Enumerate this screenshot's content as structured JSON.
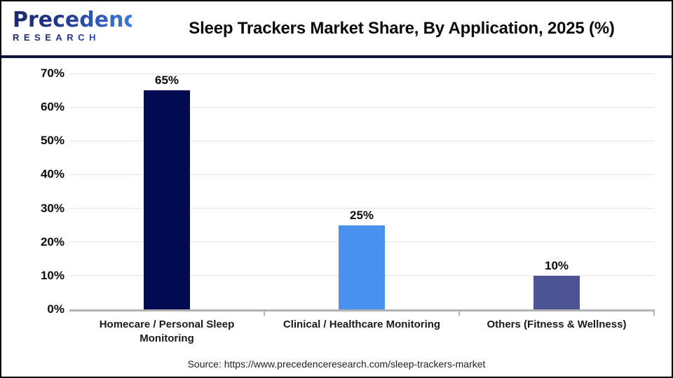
{
  "header": {
    "logo_line1": "Precedence",
    "logo_line2": "RESEARCH",
    "title": "Sleep Trackers Market Share, By Application, 2025 (%)"
  },
  "chart_data": {
    "type": "bar",
    "title": "Sleep Trackers Market Share, By Application, 2025 (%)",
    "categories": [
      "Homecare / Personal Sleep Monitoring",
      "Clinical / Healthcare Monitoring",
      "Others (Fitness & Wellness)"
    ],
    "values": [
      65,
      25,
      10
    ],
    "value_labels": [
      "65%",
      "25%",
      "10%"
    ],
    "bar_colors": [
      "#020a52",
      "#4a90ee",
      "#4d5494"
    ],
    "xlabel": "",
    "ylabel": "",
    "ylim": [
      0,
      70
    ],
    "ytick_values": [
      70,
      60,
      50,
      40,
      30,
      20,
      10,
      0
    ],
    "ytick_labels": [
      "70%",
      "60%",
      "50%",
      "40%",
      "30%",
      "20%",
      "10%",
      "0%"
    ],
    "grid": "horizontal",
    "legend": "none"
  },
  "footer": {
    "source": "Source: https://www.precedenceresearch.com/sleep-trackers-market"
  },
  "colors": {
    "divider_navy": "#0e1440",
    "axis_gray": "#b3b3b3",
    "gridline_gray": "#e7e7e7",
    "logo_navy": "#1b2a6b",
    "logo_blue": "#3a7ae0"
  }
}
